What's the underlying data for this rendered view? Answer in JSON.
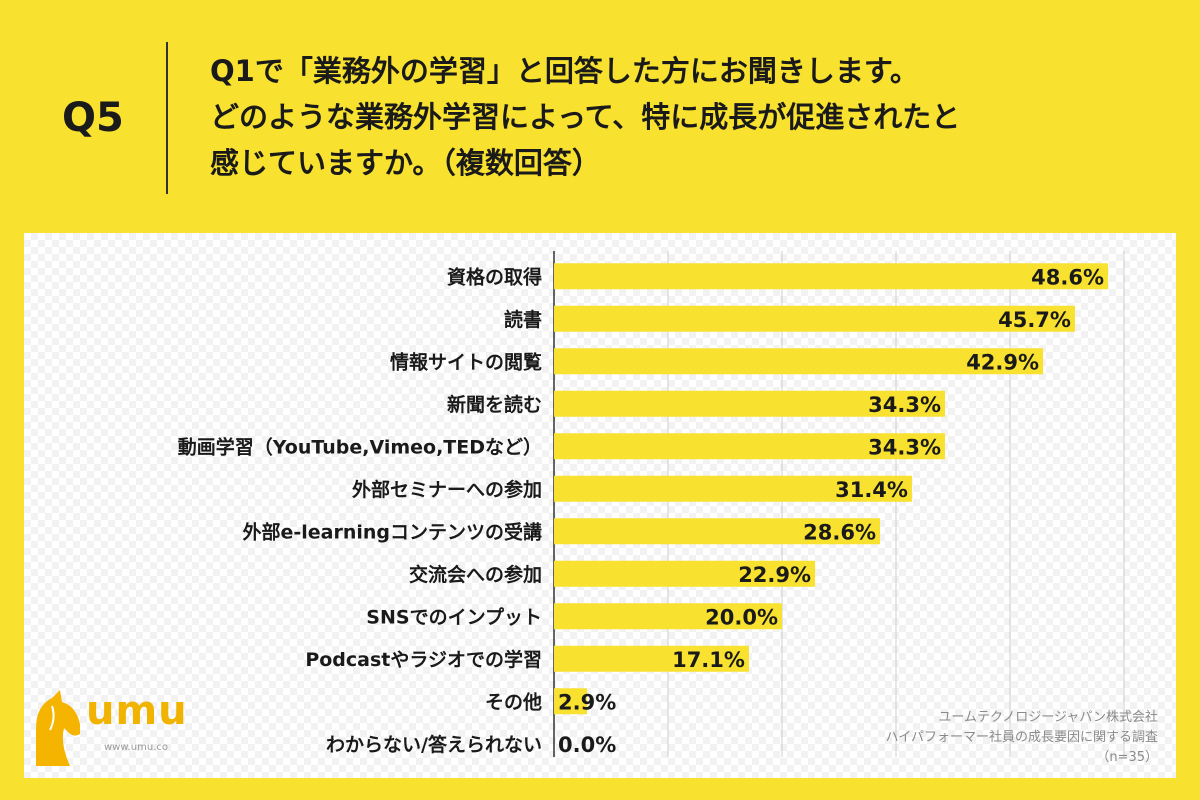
{
  "header": {
    "q_number": "Q5",
    "question_lines": [
      "Q1で「業務外の学習」と回答した方にお聞きします。",
      "どのような業務外学習によって、特に成長が促進されたと",
      "感じていますか。（複数回答）"
    ]
  },
  "colors": {
    "background": "#f8e12f",
    "bar": "#f8e12f",
    "text": "#1a1a1a"
  },
  "logo": {
    "name": "umu",
    "sub": "www.umu.co",
    "icon": "horse-head-logo-icon"
  },
  "source": {
    "company": "ユームテクノロジージャパン株式会社",
    "survey": "ハイパフォーマー社員の成長要因に関する調査",
    "n": "（n=35）"
  },
  "chart_data": {
    "type": "bar",
    "orientation": "horizontal",
    "categories": [
      "資格の取得",
      "読書",
      "情報サイトの閲覧",
      "新聞を読む",
      "動画学習（YouTube,Vimeo,TEDなど）",
      "外部セミナーへの参加",
      "外部e-learningコンテンツの受講",
      "交流会への参加",
      "SNSでのインプット",
      "Podcastやラジオでの学習",
      "その他",
      "わからない/答えられない"
    ],
    "values": [
      48.6,
      45.7,
      42.9,
      34.3,
      34.3,
      31.4,
      28.6,
      22.9,
      20.0,
      17.1,
      2.9,
      0.0
    ],
    "value_labels": [
      "48.6%",
      "45.7%",
      "42.9%",
      "34.3%",
      "34.3%",
      "31.4%",
      "28.6%",
      "22.9%",
      "20.0%",
      "17.1%",
      "2.9%",
      "0.0%"
    ],
    "xlim": [
      0,
      50
    ],
    "grid": true,
    "title": "",
    "xlabel": "",
    "ylabel": ""
  }
}
